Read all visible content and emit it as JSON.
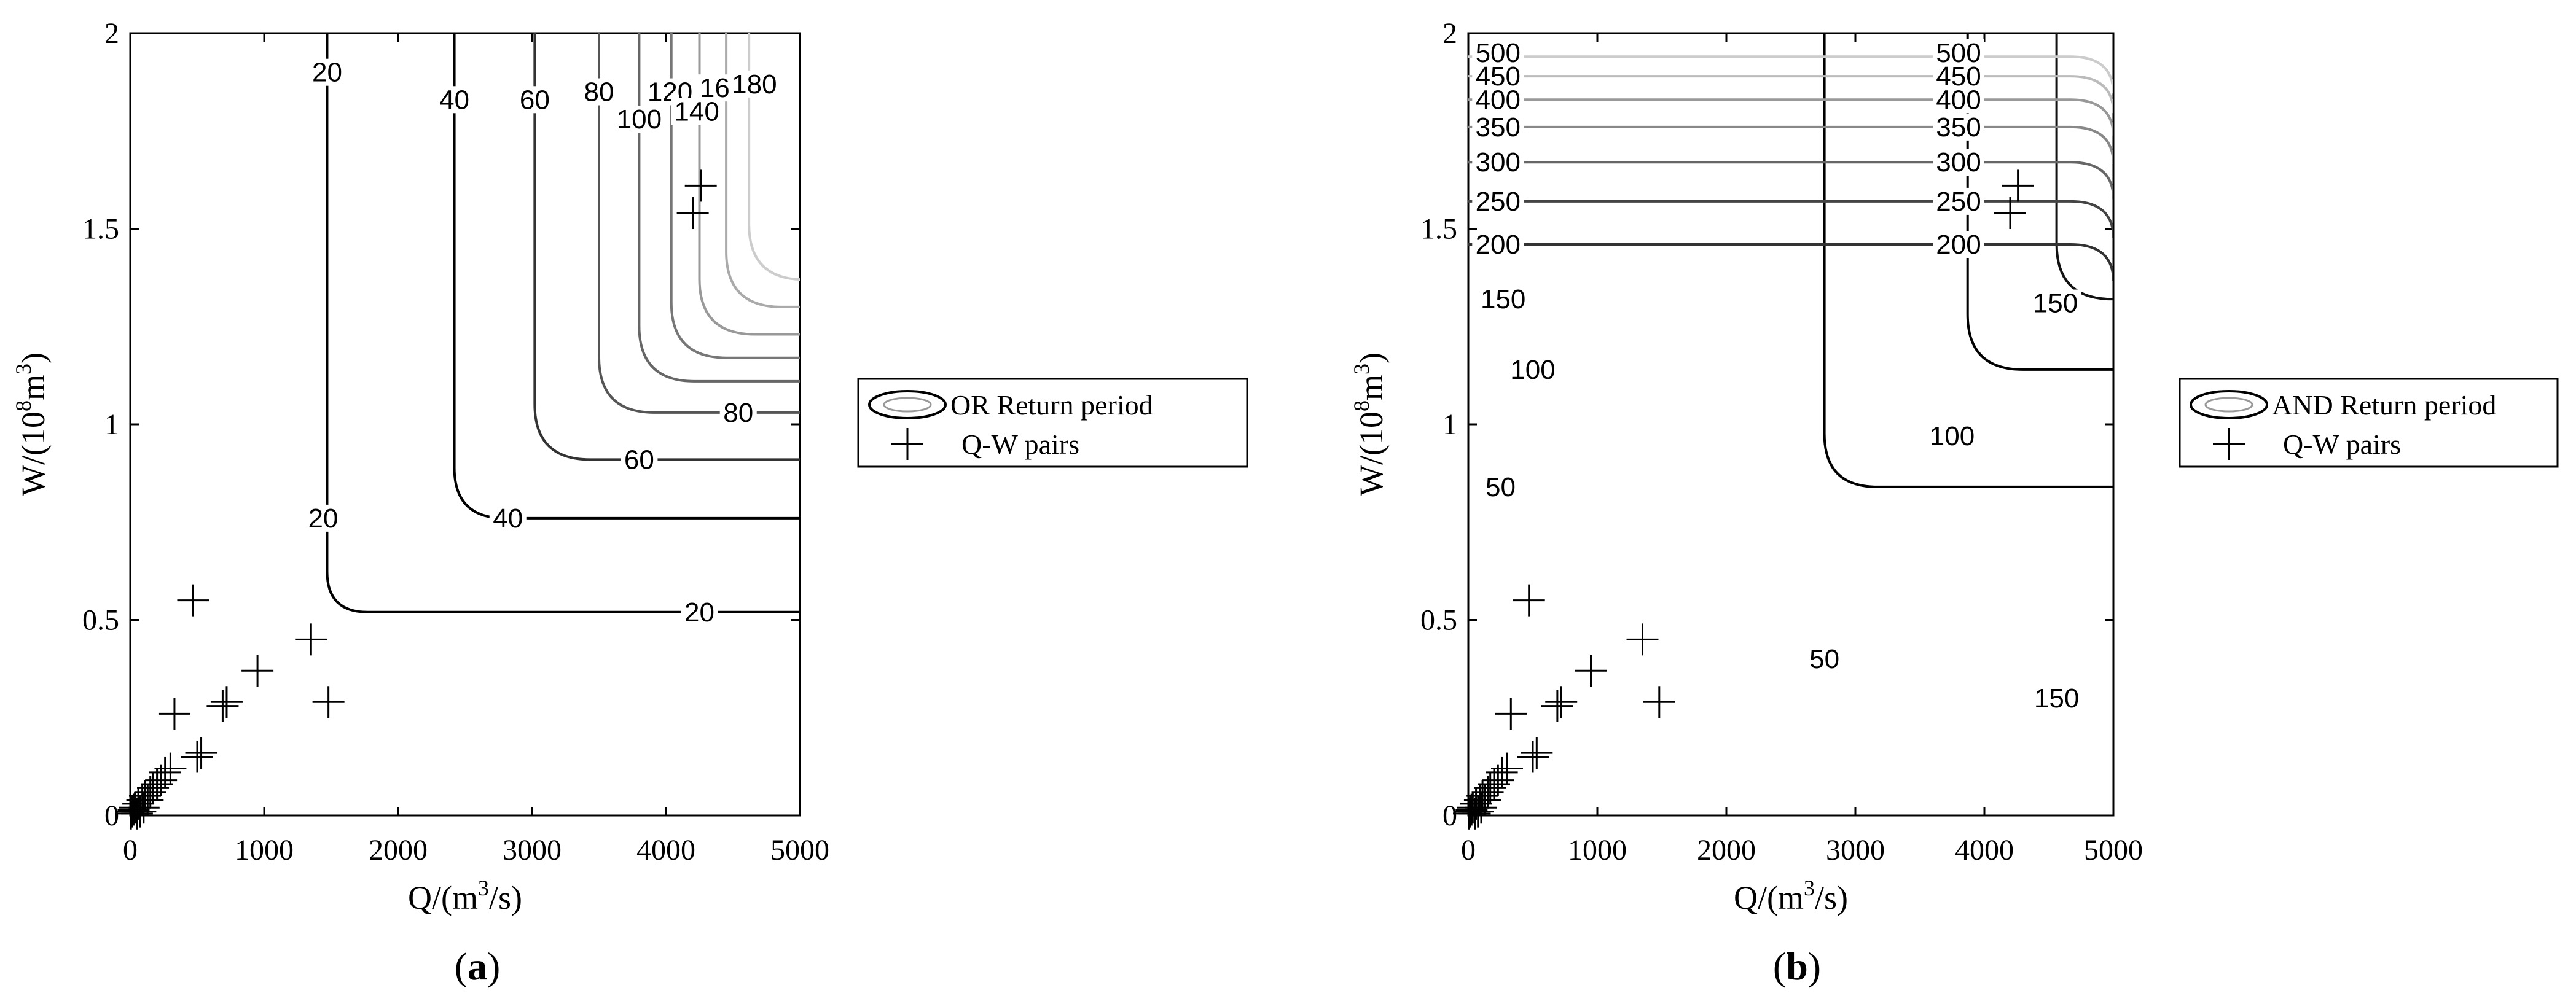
{
  "chart_data": [
    {
      "type": "contour",
      "panel_label": "(a)",
      "xlabel": "Q/(m3/s)",
      "ylabel": "W/(108m3)",
      "xlim": [
        0,
        5000
      ],
      "ylim": [
        0,
        2
      ],
      "x_ticks": [
        0,
        1000,
        2000,
        3000,
        4000,
        5000
      ],
      "y_ticks": [
        0,
        0.5,
        1,
        1.5,
        2
      ],
      "legend": [
        "OR Return period",
        "Q-W pairs"
      ],
      "legend_placement": "right",
      "contours": [
        {
          "level": 20,
          "q": 1470,
          "w": 0.52,
          "color": "#000000"
        },
        {
          "level": 40,
          "q": 2420,
          "w": 0.76,
          "color": "#000000"
        },
        {
          "level": 60,
          "q": 3020,
          "w": 0.91,
          "color": "#333333"
        },
        {
          "level": 80,
          "q": 3500,
          "w": 1.03,
          "color": "#555555"
        },
        {
          "level": 100,
          "q": 3800,
          "w": 1.11,
          "color": "#666666"
        },
        {
          "level": 120,
          "q": 4040,
          "w": 1.17,
          "color": "#777777"
        },
        {
          "level": 140,
          "q": 4250,
          "w": 1.23,
          "color": "#999999"
        },
        {
          "level": 160,
          "q": 4450,
          "w": 1.3,
          "color": "#aaaaaa"
        },
        {
          "level": 180,
          "q": 4620,
          "w": 1.37,
          "color": "#cccccc"
        }
      ],
      "contour_labels": [
        {
          "text": "20",
          "q": 1470,
          "w": 1.9
        },
        {
          "text": "20",
          "q": 1440,
          "w": 0.76
        },
        {
          "text": "20",
          "q": 4250,
          "w": 0.52
        },
        {
          "text": "40",
          "q": 2420,
          "w": 1.83
        },
        {
          "text": "40",
          "q": 2820,
          "w": 0.76
        },
        {
          "text": "60",
          "q": 3020,
          "w": 1.83
        },
        {
          "text": "60",
          "q": 3800,
          "w": 0.91
        },
        {
          "text": "80",
          "q": 3500,
          "w": 1.85
        },
        {
          "text": "80",
          "q": 4540,
          "w": 1.03
        },
        {
          "text": "100",
          "q": 3800,
          "w": 1.78
        },
        {
          "text": "120",
          "q": 4030,
          "w": 1.85
        },
        {
          "text": "140",
          "q": 4230,
          "w": 1.8
        },
        {
          "text": "160",
          "q": 4420,
          "w": 1.86
        },
        {
          "text": "180",
          "q": 4660,
          "w": 1.87
        }
      ],
      "points": [
        {
          "q": 5,
          "w": 0.005
        },
        {
          "q": 15,
          "w": 0.01
        },
        {
          "q": 25,
          "w": 0.015
        },
        {
          "q": 35,
          "w": 0.02
        },
        {
          "q": 50,
          "w": 0.005
        },
        {
          "q": 60,
          "w": 0.03
        },
        {
          "q": 75,
          "w": 0.01
        },
        {
          "q": 90,
          "w": 0.04
        },
        {
          "q": 100,
          "w": 0.02
        },
        {
          "q": 110,
          "w": 0.05
        },
        {
          "q": 130,
          "w": 0.04
        },
        {
          "q": 150,
          "w": 0.06
        },
        {
          "q": 170,
          "w": 0.07
        },
        {
          "q": 200,
          "w": 0.08
        },
        {
          "q": 230,
          "w": 0.09
        },
        {
          "q": 260,
          "w": 0.11
        },
        {
          "q": 300,
          "w": 0.12
        },
        {
          "q": 330,
          "w": 0.26
        },
        {
          "q": 470,
          "w": 0.55
        },
        {
          "q": 500,
          "w": 0.15
        },
        {
          "q": 530,
          "w": 0.16
        },
        {
          "q": 690,
          "w": 0.28
        },
        {
          "q": 720,
          "w": 0.29
        },
        {
          "q": 950,
          "w": 0.37
        },
        {
          "q": 1350,
          "w": 0.45
        },
        {
          "q": 1480,
          "w": 0.29
        },
        {
          "q": 4200,
          "w": 1.54
        },
        {
          "q": 4260,
          "w": 1.61
        }
      ]
    },
    {
      "type": "contour",
      "panel_label": "(b)",
      "xlabel": "Q/(m3/s)",
      "ylabel": "W/(108m3)",
      "xlim": [
        0,
        5000
      ],
      "ylim": [
        0,
        2
      ],
      "x_ticks": [
        0,
        1000,
        2000,
        3000,
        4000,
        5000
      ],
      "y_ticks": [
        0,
        0.5,
        1,
        1.5,
        2
      ],
      "legend": [
        "AND Return period",
        "Q-W pairs"
      ],
      "legend_placement": "right",
      "contours": [
        {
          "level": 50,
          "q": 2760,
          "w": 0.84,
          "color": "#000000"
        },
        {
          "level": 100,
          "q": 3870,
          "w": 1.14,
          "color": "#000000"
        },
        {
          "level": 150,
          "q": 4560,
          "w": 1.32,
          "color": "#111111"
        },
        {
          "level": 200,
          "q": 5000,
          "w": 1.46,
          "color": "#333333"
        },
        {
          "level": 250,
          "q": 5000,
          "w": 1.57,
          "color": "#444444"
        },
        {
          "level": 300,
          "q": 5000,
          "w": 1.67,
          "color": "#666666"
        },
        {
          "level": 350,
          "q": 5000,
          "w": 1.76,
          "color": "#888888"
        },
        {
          "level": 400,
          "q": 5000,
          "w": 1.83,
          "color": "#999999"
        },
        {
          "level": 450,
          "q": 5000,
          "w": 1.89,
          "color": "#bbbbbb"
        },
        {
          "level": 500,
          "q": 5000,
          "w": 1.94,
          "color": "#cccccc"
        }
      ],
      "contour_labels": [
        {
          "text": "50",
          "q": 250,
          "w": 0.84
        },
        {
          "text": "50",
          "q": 2760,
          "w": 0.4
        },
        {
          "text": "100",
          "q": 500,
          "w": 1.14
        },
        {
          "text": "100",
          "q": 3750,
          "w": 0.97
        },
        {
          "text": "150",
          "q": 270,
          "w": 1.32
        },
        {
          "text": "150",
          "q": 4550,
          "w": 1.31
        },
        {
          "text": "150",
          "q": 4560,
          "w": 0.3
        },
        {
          "text": "200",
          "q": 230,
          "w": 1.46
        },
        {
          "text": "200",
          "q": 3800,
          "w": 1.46
        },
        {
          "text": "250",
          "q": 230,
          "w": 1.57
        },
        {
          "text": "250",
          "q": 3800,
          "w": 1.57
        },
        {
          "text": "300",
          "q": 230,
          "w": 1.67
        },
        {
          "text": "300",
          "q": 3800,
          "w": 1.67
        },
        {
          "text": "350",
          "q": 230,
          "w": 1.76
        },
        {
          "text": "350",
          "q": 3800,
          "w": 1.76
        },
        {
          "text": "400",
          "q": 230,
          "w": 1.83
        },
        {
          "text": "400",
          "q": 3800,
          "w": 1.83
        },
        {
          "text": "450",
          "q": 230,
          "w": 1.89
        },
        {
          "text": "450",
          "q": 3800,
          "w": 1.89
        },
        {
          "text": "500",
          "q": 230,
          "w": 1.95
        },
        {
          "text": "500",
          "q": 3800,
          "w": 1.95
        }
      ],
      "points": [
        {
          "q": 5,
          "w": 0.005
        },
        {
          "q": 15,
          "w": 0.01
        },
        {
          "q": 25,
          "w": 0.015
        },
        {
          "q": 35,
          "w": 0.02
        },
        {
          "q": 50,
          "w": 0.005
        },
        {
          "q": 60,
          "w": 0.03
        },
        {
          "q": 75,
          "w": 0.01
        },
        {
          "q": 90,
          "w": 0.04
        },
        {
          "q": 100,
          "w": 0.02
        },
        {
          "q": 110,
          "w": 0.05
        },
        {
          "q": 130,
          "w": 0.04
        },
        {
          "q": 150,
          "w": 0.06
        },
        {
          "q": 170,
          "w": 0.07
        },
        {
          "q": 200,
          "w": 0.08
        },
        {
          "q": 230,
          "w": 0.09
        },
        {
          "q": 260,
          "w": 0.11
        },
        {
          "q": 300,
          "w": 0.12
        },
        {
          "q": 330,
          "w": 0.26
        },
        {
          "q": 470,
          "w": 0.55
        },
        {
          "q": 500,
          "w": 0.15
        },
        {
          "q": 530,
          "w": 0.16
        },
        {
          "q": 690,
          "w": 0.28
        },
        {
          "q": 720,
          "w": 0.29
        },
        {
          "q": 950,
          "w": 0.37
        },
        {
          "q": 1350,
          "w": 0.45
        },
        {
          "q": 1480,
          "w": 0.29
        },
        {
          "q": 4200,
          "w": 1.54
        },
        {
          "q": 4260,
          "w": 1.61
        }
      ]
    }
  ]
}
